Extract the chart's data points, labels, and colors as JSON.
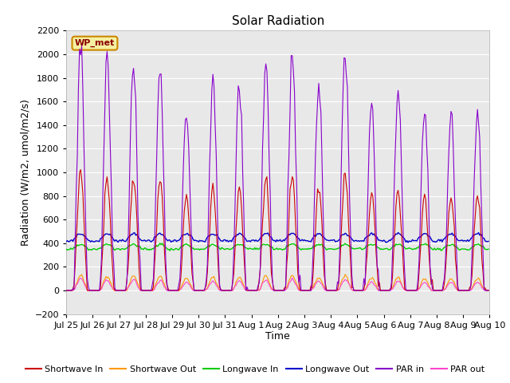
{
  "title": "Solar Radiation",
  "ylabel": "Radiation (W/m2, umol/m2/s)",
  "xlabel": "Time",
  "ylim": [
    -200,
    2200
  ],
  "yticks": [
    -200,
    0,
    200,
    400,
    600,
    800,
    1000,
    1200,
    1400,
    1600,
    1800,
    2000,
    2200
  ],
  "label_box": "WP_met",
  "series": {
    "shortwave_in": {
      "color": "#cc0000",
      "label": "Shortwave In"
    },
    "shortwave_out": {
      "color": "#ff9900",
      "label": "Shortwave Out"
    },
    "longwave_in": {
      "color": "#00cc00",
      "label": "Longwave In"
    },
    "longwave_out": {
      "color": "#0000cc",
      "label": "Longwave Out"
    },
    "par_in": {
      "color": "#8800cc",
      "label": "PAR in"
    },
    "par_out": {
      "color": "#ff44cc",
      "label": "PAR out"
    }
  },
  "background_color": "#e8e8e8",
  "fig_background": "#ffffff",
  "grid_color": "#ffffff",
  "title_fontsize": 11,
  "label_fontsize": 9,
  "tick_fontsize": 8,
  "legend_fontsize": 8,
  "sw_in_peaks": [
    1000,
    960,
    970,
    940,
    790,
    870,
    870,
    940,
    980,
    870,
    980,
    830,
    850,
    790,
    790,
    800
  ],
  "par_in_peaks": [
    2070,
    1960,
    1960,
    1870,
    1520,
    1750,
    1770,
    1920,
    2000,
    1730,
    2010,
    1560,
    1680,
    1480,
    1490,
    1500
  ],
  "n_days": 16,
  "lw_in_base": 350,
  "lw_out_base": 420
}
